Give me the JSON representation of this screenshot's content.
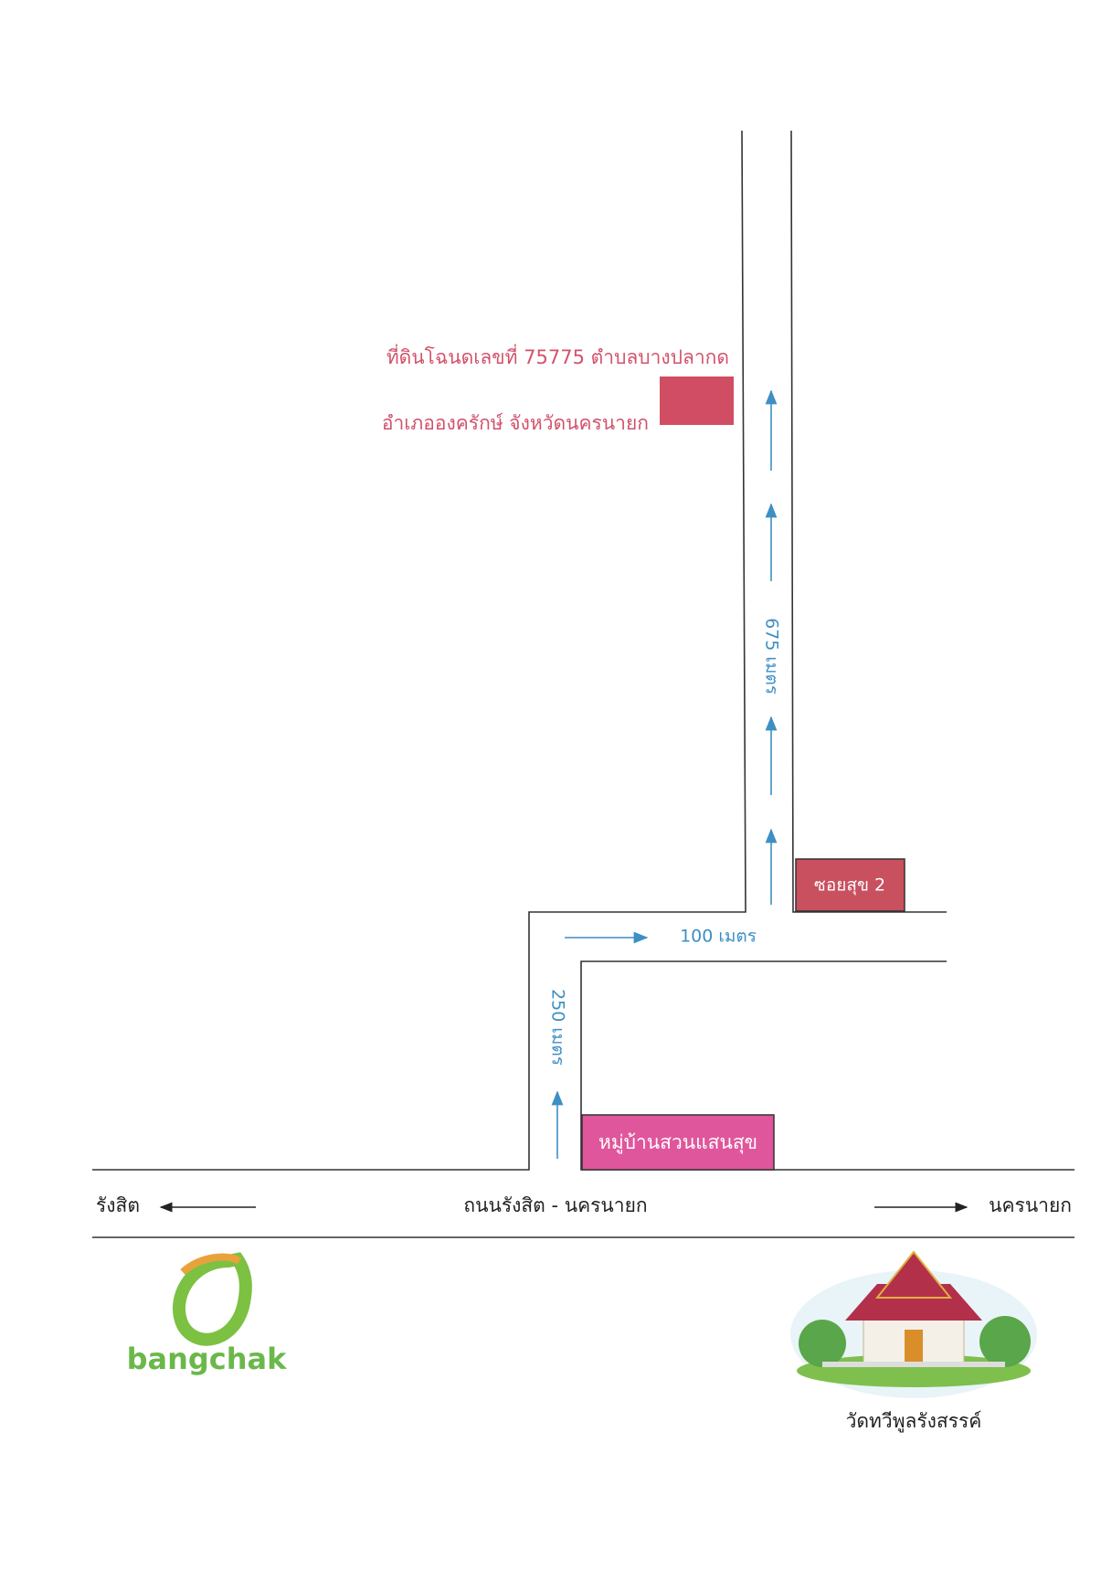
{
  "land": {
    "line1": "ที่ดินโฉนดเลขที่ 75775 ตำบลบางปลากด",
    "line2": "อำเภอองครักษ์ จังหวัดนครนายก"
  },
  "distances": {
    "north": "675 เมตร",
    "east": "100 เมตร",
    "south": "250 เมตร"
  },
  "places": {
    "soi": "ซอยสุข 2",
    "village": "หมู่บ้านสวนแสนสุข"
  },
  "main_road": {
    "name": "ถนนรังสิต - นครนายก",
    "left": "รังสิต",
    "right": "นครนายก"
  },
  "logo": {
    "text": "bangchak"
  },
  "temple": {
    "name": "วัดทวีพูลรังสรรค์"
  }
}
